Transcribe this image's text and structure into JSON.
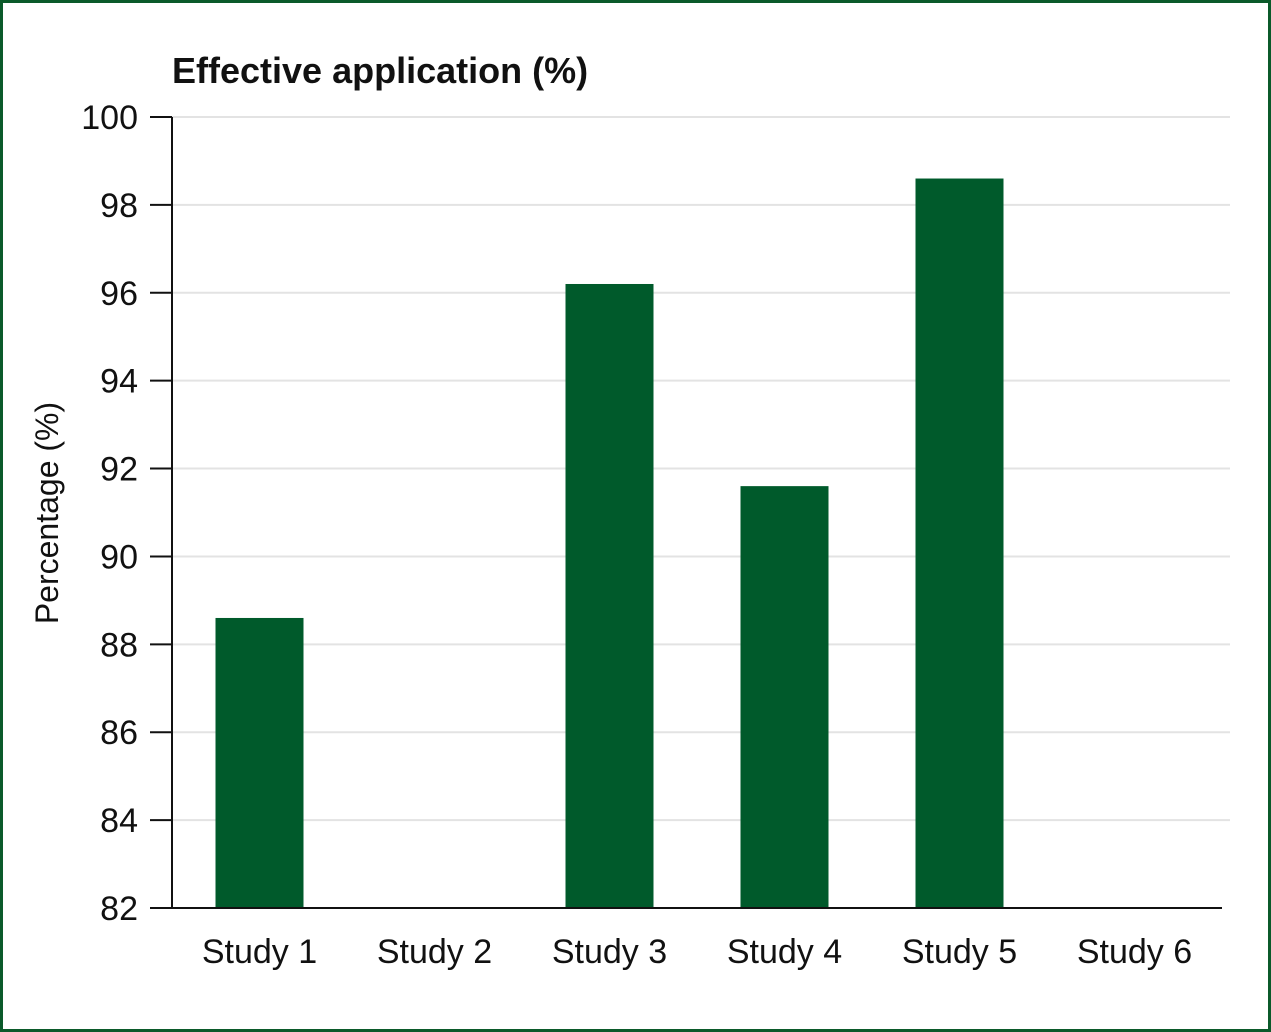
{
  "chart_data": {
    "type": "bar",
    "title": "Effective application (%)",
    "ylabel": "Percentage (%)",
    "xlabel": "",
    "categories": [
      "Study 1",
      "Study 2",
      "Study 3",
      "Study 4",
      "Study 5",
      "Study 6"
    ],
    "values": [
      88.6,
      null,
      96.2,
      91.6,
      98.6,
      null
    ],
    "ylim": [
      82,
      100
    ],
    "yticks": [
      "82",
      "84",
      "86",
      "88",
      "90",
      "92",
      "94",
      "96",
      "98",
      "100"
    ],
    "grid": true,
    "legend": "none",
    "colors": {
      "bar": "#005a2b",
      "frame": "#0b5a2a",
      "grid": "#e3e3e3",
      "axis": "#111111"
    }
  }
}
